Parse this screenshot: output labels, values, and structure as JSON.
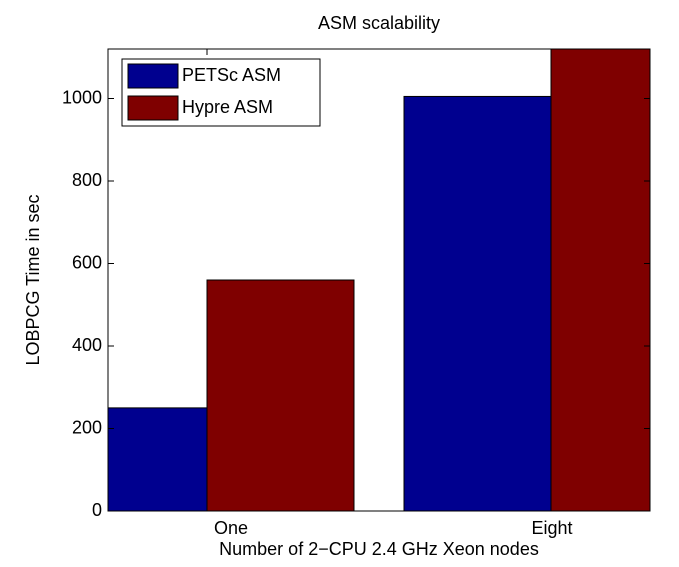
{
  "chart_data": {
    "type": "bar",
    "title": "ASM scalability",
    "xlabel": "Number of 2−CPU 2.4 GHz Xeon nodes",
    "ylabel": "LOBPCG Time in sec",
    "categories": [
      "One",
      "Eight"
    ],
    "series": [
      {
        "name": "PETSc ASM",
        "color": "#00008f",
        "values": [
          250,
          1005
        ]
      },
      {
        "name": "Hypre ASM",
        "color": "#7f0000",
        "values": [
          560,
          1120
        ]
      }
    ],
    "ylim": [
      0,
      1120
    ],
    "yticks": [
      0,
      200,
      400,
      600,
      800,
      1000
    ],
    "legend": "upper left"
  }
}
